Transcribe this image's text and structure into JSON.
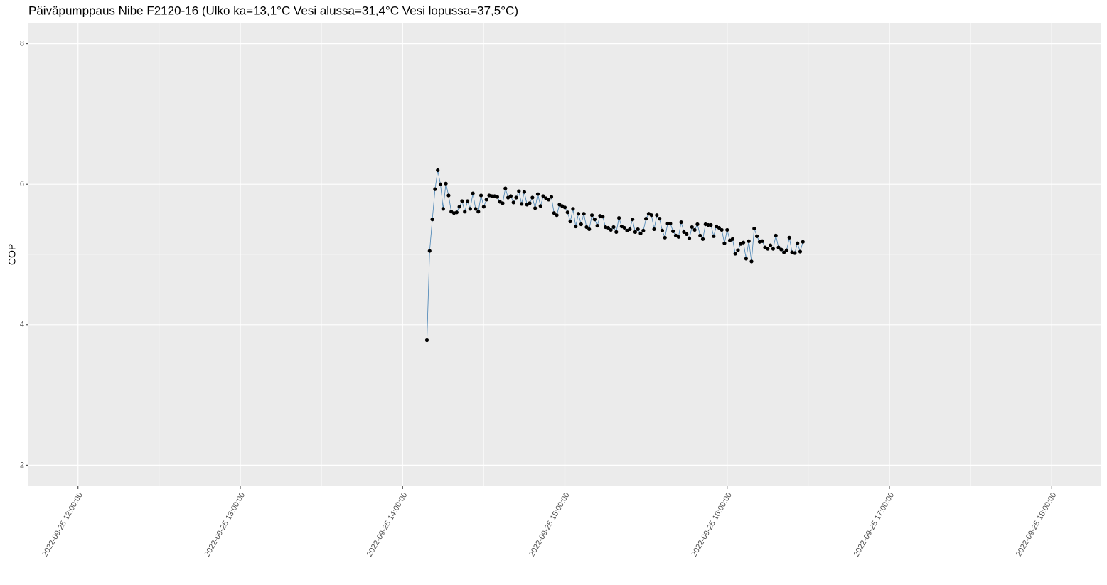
{
  "chart_data": {
    "type": "line",
    "title": "Päiväpumppaus Nibe F2120-16 (Ulko ka=13,1°C Vesi alussa=31,4°C Vesi lopussa=37,5°C)",
    "y_label": "COP",
    "x": [
      "2022-09-25 14:09:00",
      "2022-09-25 14:10:00",
      "2022-09-25 14:11:00",
      "2022-09-25 14:12:00",
      "2022-09-25 14:13:00",
      "2022-09-25 14:14:00",
      "2022-09-25 14:15:00",
      "2022-09-25 14:16:00",
      "2022-09-25 14:17:00",
      "2022-09-25 14:18:00",
      "2022-09-25 14:19:00",
      "2022-09-25 14:20:00",
      "2022-09-25 14:21:00",
      "2022-09-25 14:22:00",
      "2022-09-25 14:23:00",
      "2022-09-25 14:24:00",
      "2022-09-25 14:25:00",
      "2022-09-25 14:26:00",
      "2022-09-25 14:27:00",
      "2022-09-25 14:28:00",
      "2022-09-25 14:29:00",
      "2022-09-25 14:30:00",
      "2022-09-25 14:31:00",
      "2022-09-25 14:32:00",
      "2022-09-25 14:33:00",
      "2022-09-25 14:34:00",
      "2022-09-25 14:35:00",
      "2022-09-25 14:36:00",
      "2022-09-25 14:37:00",
      "2022-09-25 14:38:00",
      "2022-09-25 14:39:00",
      "2022-09-25 14:40:00",
      "2022-09-25 14:41:00",
      "2022-09-25 14:42:00",
      "2022-09-25 14:43:00",
      "2022-09-25 14:44:00",
      "2022-09-25 14:45:00",
      "2022-09-25 14:46:00",
      "2022-09-25 14:47:00",
      "2022-09-25 14:48:00",
      "2022-09-25 14:49:00",
      "2022-09-25 14:50:00",
      "2022-09-25 14:51:00",
      "2022-09-25 14:52:00",
      "2022-09-25 14:53:00",
      "2022-09-25 14:54:00",
      "2022-09-25 14:55:00",
      "2022-09-25 14:56:00",
      "2022-09-25 14:57:00",
      "2022-09-25 14:58:00",
      "2022-09-25 14:59:00",
      "2022-09-25 15:00:00",
      "2022-09-25 15:01:00",
      "2022-09-25 15:02:00",
      "2022-09-25 15:03:00",
      "2022-09-25 15:04:00",
      "2022-09-25 15:05:00",
      "2022-09-25 15:06:00",
      "2022-09-25 15:07:00",
      "2022-09-25 15:08:00",
      "2022-09-25 15:09:00",
      "2022-09-25 15:10:00",
      "2022-09-25 15:11:00",
      "2022-09-25 15:12:00",
      "2022-09-25 15:13:00",
      "2022-09-25 15:14:00",
      "2022-09-25 15:15:00",
      "2022-09-25 15:16:00",
      "2022-09-25 15:17:00",
      "2022-09-25 15:18:00",
      "2022-09-25 15:19:00",
      "2022-09-25 15:20:00",
      "2022-09-25 15:21:00",
      "2022-09-25 15:22:00",
      "2022-09-25 15:23:00",
      "2022-09-25 15:24:00",
      "2022-09-25 15:25:00",
      "2022-09-25 15:26:00",
      "2022-09-25 15:27:00",
      "2022-09-25 15:28:00",
      "2022-09-25 15:29:00",
      "2022-09-25 15:30:00",
      "2022-09-25 15:31:00",
      "2022-09-25 15:32:00",
      "2022-09-25 15:33:00",
      "2022-09-25 15:34:00",
      "2022-09-25 15:35:00",
      "2022-09-25 15:36:00",
      "2022-09-25 15:37:00",
      "2022-09-25 15:38:00",
      "2022-09-25 15:39:00",
      "2022-09-25 15:40:00",
      "2022-09-25 15:41:00",
      "2022-09-25 15:42:00",
      "2022-09-25 15:43:00",
      "2022-09-25 15:44:00",
      "2022-09-25 15:45:00",
      "2022-09-25 15:46:00",
      "2022-09-25 15:47:00",
      "2022-09-25 15:48:00",
      "2022-09-25 15:49:00",
      "2022-09-25 15:50:00",
      "2022-09-25 15:51:00",
      "2022-09-25 15:52:00",
      "2022-09-25 15:53:00",
      "2022-09-25 15:54:00",
      "2022-09-25 15:55:00",
      "2022-09-25 15:56:00",
      "2022-09-25 15:57:00",
      "2022-09-25 15:58:00",
      "2022-09-25 15:59:00",
      "2022-09-25 16:00:00",
      "2022-09-25 16:01:00",
      "2022-09-25 16:02:00",
      "2022-09-25 16:03:00",
      "2022-09-25 16:04:00",
      "2022-09-25 16:05:00",
      "2022-09-25 16:06:00",
      "2022-09-25 16:07:00",
      "2022-09-25 16:08:00",
      "2022-09-25 16:09:00",
      "2022-09-25 16:10:00",
      "2022-09-25 16:11:00",
      "2022-09-25 16:12:00",
      "2022-09-25 16:13:00",
      "2022-09-25 16:14:00",
      "2022-09-25 16:15:00",
      "2022-09-25 16:16:00",
      "2022-09-25 16:17:00",
      "2022-09-25 16:18:00",
      "2022-09-25 16:19:00",
      "2022-09-25 16:20:00",
      "2022-09-25 16:21:00",
      "2022-09-25 16:22:00",
      "2022-09-25 16:23:00",
      "2022-09-25 16:24:00",
      "2022-09-25 16:25:00",
      "2022-09-25 16:26:00",
      "2022-09-25 16:27:00",
      "2022-09-25 16:28:00"
    ],
    "values": [
      3.78,
      5.05,
      5.5,
      5.93,
      6.2,
      6.0,
      5.65,
      6.01,
      5.84,
      5.61,
      5.59,
      5.6,
      5.68,
      5.76,
      5.61,
      5.76,
      5.65,
      5.87,
      5.65,
      5.61,
      5.84,
      5.68,
      5.78,
      5.84,
      5.83,
      5.83,
      5.82,
      5.75,
      5.73,
      5.94,
      5.81,
      5.83,
      5.74,
      5.81,
      5.9,
      5.72,
      5.89,
      5.71,
      5.73,
      5.81,
      5.66,
      5.86,
      5.69,
      5.83,
      5.8,
      5.78,
      5.82,
      5.59,
      5.56,
      5.71,
      5.69,
      5.67,
      5.6,
      5.47,
      5.65,
      5.4,
      5.58,
      5.43,
      5.58,
      5.39,
      5.36,
      5.56,
      5.5,
      5.41,
      5.55,
      5.54,
      5.39,
      5.38,
      5.35,
      5.39,
      5.32,
      5.52,
      5.4,
      5.38,
      5.34,
      5.36,
      5.5,
      5.32,
      5.36,
      5.3,
      5.34,
      5.51,
      5.58,
      5.56,
      5.36,
      5.56,
      5.51,
      5.34,
      5.24,
      5.44,
      5.44,
      5.33,
      5.27,
      5.25,
      5.46,
      5.32,
      5.29,
      5.23,
      5.39,
      5.35,
      5.43,
      5.27,
      5.22,
      5.43,
      5.42,
      5.42,
      5.26,
      5.4,
      5.38,
      5.35,
      5.16,
      5.35,
      5.2,
      5.22,
      5.01,
      5.06,
      5.15,
      5.17,
      4.94,
      5.19,
      4.9,
      5.37,
      5.26,
      5.18,
      5.19,
      5.1,
      5.08,
      5.13,
      5.08,
      5.27,
      5.1,
      5.07,
      5.03,
      5.06,
      5.24,
      5.03,
      5.02,
      5.16,
      5.04,
      5.18
    ],
    "line_color": "#4682b4",
    "point_color": "#000000",
    "xlim": [
      "2022-09-25 11:41:40",
      "2022-09-25 18:18:20"
    ],
    "xticks": [
      "2022-09-25 12:00:00",
      "2022-09-25 13:00:00",
      "2022-09-25 14:00:00",
      "2022-09-25 15:00:00",
      "2022-09-25 16:00:00",
      "2022-09-25 17:00:00",
      "2022-09-25 18:00:00"
    ],
    "ylim": [
      1.7,
      8.3
    ],
    "yticks": [
      2,
      4,
      6,
      8
    ],
    "grid": true,
    "panel_color": "#ebebeb"
  }
}
